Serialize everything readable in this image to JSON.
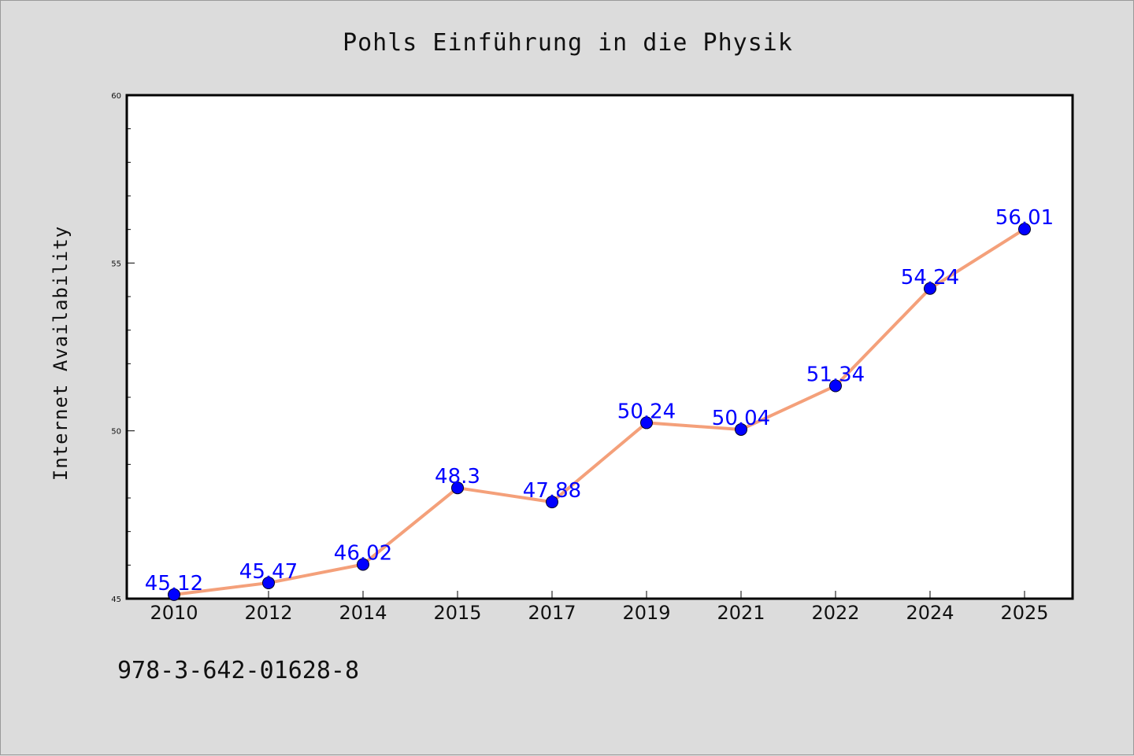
{
  "footer": {
    "isbn": "978-3-642-01628-8"
  },
  "chart_data": {
    "type": "line",
    "title": "Pohls Einführung in die Physik",
    "xlabel": "",
    "ylabel": "Internet Availability",
    "categories": [
      "2010",
      "2012",
      "2014",
      "2015",
      "2017",
      "2019",
      "2021",
      "2022",
      "2024",
      "2025"
    ],
    "series": [
      {
        "values": [
          45.12,
          45.47,
          46.02,
          48.3,
          47.88,
          50.24,
          50.04,
          51.34,
          54.24,
          56.01
        ],
        "labels": [
          "45.12",
          "45.47",
          "46.02",
          "48.3",
          "47.88",
          "50.24",
          "50.04",
          "51.34",
          "54.24",
          "56.01"
        ],
        "line_color": "#f4a07a",
        "marker_color": "#0000ff"
      }
    ],
    "ylim": [
      45,
      60
    ],
    "yticks": [
      "45",
      "50",
      "55",
      "60"
    ],
    "grid": false,
    "legend": "none",
    "plot_background": "#ffffff",
    "figure_background": "#dcdcdc"
  }
}
